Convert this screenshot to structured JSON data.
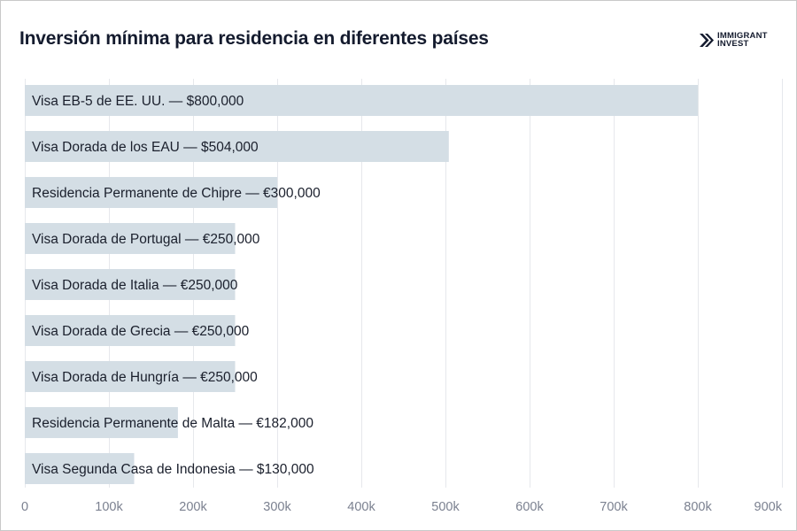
{
  "chart_data": {
    "type": "bar",
    "orientation": "horizontal",
    "title": "Inversión mínima para residencia en diferentes países",
    "categories": [
      "Visa EB-5 de EE. UU. — $800,000",
      "Visa Dorada de los EAU — $504,000",
      "Residencia Permanente de Chipre — €300,000",
      "Visa Dorada de Portugal — €250,000",
      "Visa Dorada de Italia — €250,000",
      "Visa Dorada de Grecia — €250,000",
      "Visa Dorada de Hungría — €250,000",
      "Residencia Permanente de Malta — €182,000",
      "Visa Segunda Casa de Indonesia — $130,000"
    ],
    "values": [
      800000,
      504000,
      300000,
      250000,
      250000,
      250000,
      250000,
      182000,
      130000
    ],
    "xlim": [
      0,
      900000
    ],
    "xticks": [
      0,
      100000,
      200000,
      300000,
      400000,
      500000,
      600000,
      700000,
      800000,
      900000
    ],
    "xtick_labels": [
      "0",
      "100k",
      "200k",
      "300k",
      "400k",
      "500k",
      "600k",
      "700k",
      "800k",
      "900k"
    ],
    "xlabel": "",
    "ylabel": "",
    "grid": true,
    "bar_color": "#d4dee5",
    "grid_color": "#e6e8ec"
  },
  "logo": {
    "line1": "IMMIGRANT",
    "line2": "INVEST",
    "icon": "double-chevron-icon",
    "color": "#141b2e"
  }
}
